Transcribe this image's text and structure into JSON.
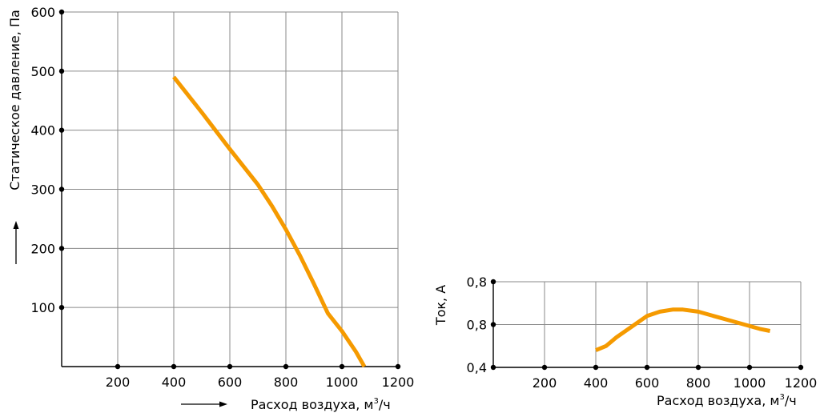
{
  "chart_data": [
    {
      "type": "line",
      "title": "",
      "xlabel": "Расход воздуха, м³/ч",
      "xlabel_main": "Расход воздуха, м",
      "xlabel_sup": "3",
      "xlabel_tail": "/ч",
      "ylabel": "Статическое давление, Па",
      "xlim": [
        0,
        1200
      ],
      "ylim": [
        0,
        600
      ],
      "x_ticks": [
        "200",
        "400",
        "600",
        "800",
        "1000",
        "1200"
      ],
      "y_ticks": [
        "100",
        "200",
        "300",
        "400",
        "500",
        "600"
      ],
      "grid": true,
      "line_color": "#f59a00",
      "series": [
        {
          "x": [
            400,
            500,
            600,
            700,
            750,
            800,
            850,
            900,
            950,
            1000,
            1050,
            1080
          ],
          "y": [
            490,
            430,
            368,
            308,
            272,
            232,
            188,
            140,
            90,
            60,
            25,
            0
          ]
        }
      ]
    },
    {
      "type": "line",
      "title": "",
      "xlabel": "Расход воздуха, м³/ч",
      "xlabel_main": "Расход воздуха, м",
      "xlabel_sup": "3",
      "xlabel_tail": "/ч",
      "ylabel": "Ток, А",
      "xlim": [
        0,
        1200
      ],
      "y_tick_labels": [
        "0,4",
        "0,8",
        "0,8"
      ],
      "grid": true,
      "line_color": "#f59a00",
      "series": [
        {
          "x": [
            400,
            440,
            480,
            540,
            600,
            650,
            700,
            740,
            800,
            860,
            920,
            980,
            1040,
            1080
          ],
          "y": [
            0.48,
            0.5,
            0.54,
            0.59,
            0.64,
            0.66,
            0.67,
            0.67,
            0.66,
            0.64,
            0.62,
            0.6,
            0.58,
            0.57
          ]
        }
      ]
    }
  ]
}
